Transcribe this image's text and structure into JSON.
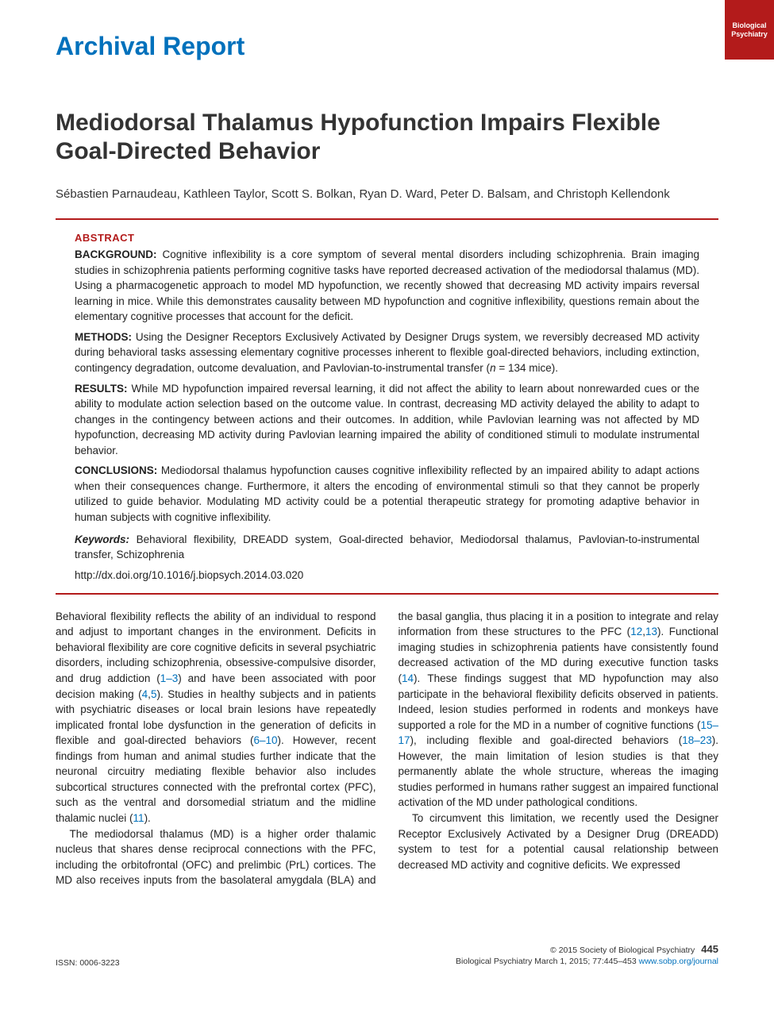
{
  "corner_tab": {
    "line1": "Biological",
    "line2": "Psychiatry"
  },
  "section_label": "Archival Report",
  "title": "Mediodorsal Thalamus Hypofunction Impairs Flexible Goal-Directed Behavior",
  "authors": "Sébastien Parnaudeau, Kathleen Taylor, Scott S. Bolkan, Ryan D. Ward, Peter D. Balsam, and Christoph Kellendonk",
  "abstract_heading": "ABSTRACT",
  "abstract": {
    "background": {
      "label": "BACKGROUND:",
      "text": "Cognitive inflexibility is a core symptom of several mental disorders including schizophrenia. Brain imaging studies in schizophrenia patients performing cognitive tasks have reported decreased activation of the mediodorsal thalamus (MD). Using a pharmacogenetic approach to model MD hypofunction, we recently showed that decreasing MD activity impairs reversal learning in mice. While this demonstrates causality between MD hypofunction and cognitive inflexibility, questions remain about the elementary cognitive processes that account for the deficit."
    },
    "methods": {
      "label": "METHODS:",
      "text_before_n": "Using the Designer Receptors Exclusively Activated by Designer Drugs system, we reversibly decreased MD activity during behavioral tasks assessing elementary cognitive processes inherent to flexible goal-directed behaviors, including extinction, contingency degradation, outcome devaluation, and Pavlovian-to-instrumental transfer (",
      "n_label": "n",
      "n_value": " = 134 mice)."
    },
    "results": {
      "label": "RESULTS:",
      "text": "While MD hypofunction impaired reversal learning, it did not affect the ability to learn about nonrewarded cues or the ability to modulate action selection based on the outcome value. In contrast, decreasing MD activity delayed the ability to adapt to changes in the contingency between actions and their outcomes. In addition, while Pavlovian learning was not affected by MD hypofunction, decreasing MD activity during Pavlovian learning impaired the ability of conditioned stimuli to modulate instrumental behavior."
    },
    "conclusions": {
      "label": "CONCLUSIONS:",
      "text": "Mediodorsal thalamus hypofunction causes cognitive inflexibility reflected by an impaired ability to adapt actions when their consequences change. Furthermore, it alters the encoding of environmental stimuli so that they cannot be properly utilized to guide behavior. Modulating MD activity could be a potential therapeutic strategy for promoting adaptive behavior in human subjects with cognitive inflexibility."
    }
  },
  "keywords": {
    "label": "Keywords:",
    "text": "Behavioral flexibility, DREADD system, Goal-directed behavior, Mediodorsal thalamus, Pavlovian-to-instrumental transfer, Schizophrenia"
  },
  "doi": "http://dx.doi.org/10.1016/j.biopsych.2014.03.020",
  "body": {
    "p1_a": "Behavioral flexibility reflects the ability of an individual to respond and adjust to important changes in the environment. Deficits in behavioral flexibility are core cognitive deficits in several psychiatric disorders, including schizophrenia, obsessive-compulsive disorder, and drug addiction (",
    "c1": "1–3",
    "p1_b": ") and have been associated with poor decision making (",
    "c2": "4",
    "p1_c": ",",
    "c3": "5",
    "p1_d": "). Studies in healthy subjects and in patients with psychiatric diseases or local brain lesions have repeatedly implicated frontal lobe dysfunction in the generation of deficits in flexible and goal-directed behaviors (",
    "c4": "6–10",
    "p1_e": "). However, recent findings from human and animal studies further indicate that the neuronal circuitry mediating flexible behavior also includes subcortical structures connected with the prefrontal cortex (PFC), such as the ventral and dorsomedial striatum and the midline thalamic nuclei (",
    "c5": "11",
    "p1_f": ").",
    "p2_a": "The mediodorsal thalamus (MD) is a higher order thalamic nucleus that shares dense reciprocal connections with the PFC, including the orbitofrontal (OFC) and prelimbic (PrL) cortices. The MD also receives inputs from the basolateral amygdala (BLA) and the basal ganglia, thus placing it in a position to integrate and relay information from these structures to the PFC (",
    "c6": "12",
    "p2_b": ",",
    "c7": "13",
    "p2_c": "). Functional imaging studies in schizophrenia patients have consistently found decreased activation of the MD during executive function tasks (",
    "c8": "14",
    "p2_d": "). These findings suggest that MD hypofunction may also participate in the behavioral flexibility deficits observed in patients. Indeed, lesion studies performed in rodents and monkeys have supported a role for the MD in a number of cognitive functions (",
    "c9": "15–17",
    "p2_e": "), including flexible and goal-directed behaviors (",
    "c10": "18–23",
    "p2_f": "). However, the main limitation of lesion studies is that they permanently ablate the whole structure, whereas the imaging studies performed in humans rather suggest an impaired functional activation of the MD under pathological conditions.",
    "p3": "To circumvent this limitation, we recently used the Designer Receptor Exclusively Activated by a Designer Drug (DREADD) system to test for a potential causal relationship between decreased MD activity and cognitive deficits. We expressed"
  },
  "footer": {
    "issn": "ISSN: 0006-3223",
    "copyright": "© 2015 Society of Biological Psychiatry",
    "pagenum": "445",
    "citation": "Biological Psychiatry March 1, 2015; 77:445–453 ",
    "url": "www.sobp.org/journal"
  },
  "colors": {
    "brand_red": "#b31b1b",
    "link_blue": "#0071bc",
    "text": "#222222"
  }
}
